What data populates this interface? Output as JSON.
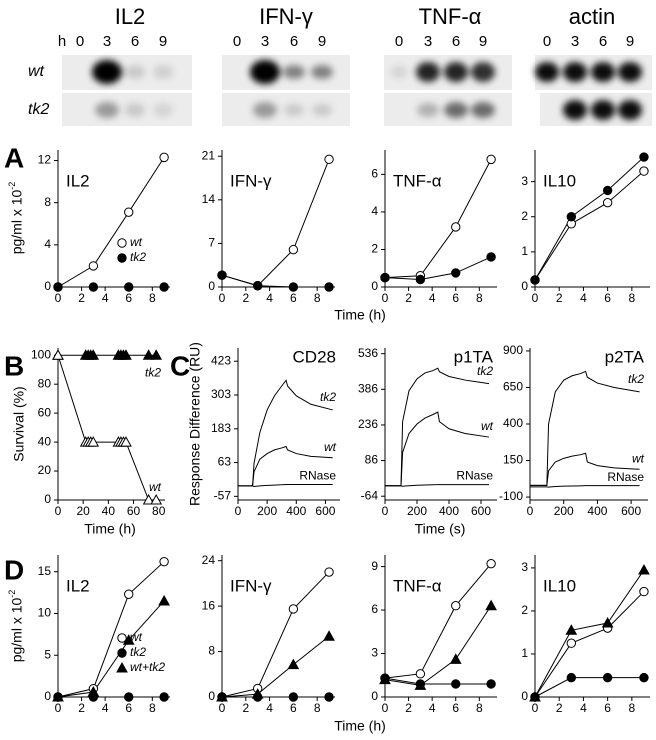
{
  "blot": {
    "targets": [
      "IL2",
      "IFN-γ",
      "TNF-α",
      "actin"
    ],
    "hour_unit": "h",
    "hours": [
      0,
      3,
      6,
      9
    ],
    "rows": [
      "wt",
      "tk2"
    ]
  },
  "chart_data": [
    {
      "type": "line",
      "panel": "A",
      "title": "IL2",
      "x": [
        0,
        3,
        6,
        9
      ],
      "xlim": [
        0,
        9.5
      ],
      "xticks": [
        0,
        2,
        4,
        6,
        8
      ],
      "ylim": [
        0,
        13
      ],
      "yticks": [
        0,
        4,
        8,
        12
      ],
      "ylabel": "pg/ml x 10",
      "ylabel_exponent": "-2",
      "legend": "lower right",
      "series": [
        {
          "name": "wt",
          "color": "#000000",
          "marker": "open-circle",
          "values": [
            0,
            2,
            7.1,
            12.3
          ]
        },
        {
          "name": "tk2",
          "color": "#000000",
          "marker": "filled-circle",
          "values": [
            0,
            0,
            0,
            0
          ]
        }
      ]
    },
    {
      "type": "line",
      "title": "IFN-γ",
      "x": [
        0,
        3,
        6,
        9
      ],
      "xlim": [
        0,
        9.5
      ],
      "xticks": [
        0,
        2,
        4,
        6,
        8
      ],
      "ylim": [
        0,
        22
      ],
      "yticks": [
        0,
        7,
        14,
        21
      ],
      "series": [
        {
          "name": "wt",
          "color": "#000000",
          "marker": "open-circle",
          "values": [
            1.9,
            0.2,
            6,
            20.5
          ]
        },
        {
          "name": "tk2",
          "color": "#000000",
          "marker": "filled-circle",
          "values": [
            1.9,
            0.2,
            0,
            0
          ]
        }
      ]
    },
    {
      "type": "line",
      "title": "TNF-α",
      "x": [
        0,
        3,
        6,
        9
      ],
      "xlim": [
        0,
        9.5
      ],
      "xticks": [
        0,
        2,
        4,
        6,
        8
      ],
      "ylim": [
        0,
        7.3
      ],
      "yticks": [
        0,
        2,
        4,
        6
      ],
      "xlabel": "Time (h)",
      "series": [
        {
          "name": "wt",
          "color": "#000000",
          "marker": "open-circle",
          "values": [
            0.5,
            0.6,
            3.2,
            6.8
          ]
        },
        {
          "name": "tk2",
          "color": "#000000",
          "marker": "filled-circle",
          "values": [
            0.5,
            0.4,
            0.75,
            1.6
          ]
        }
      ]
    },
    {
      "type": "line",
      "title": "IL10",
      "x": [
        0,
        3,
        6,
        9
      ],
      "xlim": [
        0,
        9.5
      ],
      "xticks": [
        0,
        2,
        4,
        6,
        8
      ],
      "ylim": [
        0,
        3.9
      ],
      "yticks": [
        0,
        1,
        2,
        3
      ],
      "series": [
        {
          "name": "wt",
          "color": "#000000",
          "marker": "open-circle",
          "values": [
            0.2,
            1.8,
            2.4,
            3.3
          ]
        },
        {
          "name": "tk2",
          "color": "#000000",
          "marker": "filled-circle",
          "values": [
            0.2,
            2.0,
            2.75,
            3.7
          ]
        }
      ]
    },
    {
      "type": "line",
      "panel": "B",
      "x": [
        0,
        22,
        24,
        26,
        28,
        48,
        50,
        52,
        54,
        72,
        78
      ],
      "xlim": [
        0,
        85
      ],
      "xticks": [
        0,
        20,
        40,
        60,
        80
      ],
      "ylim": [
        0,
        105
      ],
      "yticks": [
        0,
        20,
        40,
        60,
        80,
        100
      ],
      "xlabel": "Time (h)",
      "ylabel": "Survival (%)",
      "series_labels": true,
      "series": [
        {
          "name": "tk2",
          "color": "#000000",
          "marker": "filled-triangle",
          "values": [
            100,
            100,
            100,
            100,
            100,
            100,
            100,
            100,
            100,
            100,
            100
          ]
        },
        {
          "name": "wt",
          "color": "#000000",
          "marker": "open-triangle",
          "values": [
            100,
            40,
            40,
            40,
            40,
            40,
            40,
            40,
            40,
            0,
            0
          ]
        }
      ]
    },
    {
      "type": "line",
      "panel": "C",
      "title": "CD28",
      "x": [
        0,
        100,
        110,
        150,
        200,
        250,
        300,
        330,
        340,
        400,
        500,
        650
      ],
      "xlim": [
        0,
        700
      ],
      "xticks": [
        0,
        200,
        400,
        600
      ],
      "ylim": [
        -70,
        470
      ],
      "yticks": [
        -57,
        63,
        183,
        303,
        423
      ],
      "ylabel": "Response Difference (RU)",
      "series_labels": true,
      "series": [
        {
          "name": "tk2",
          "color": "#000000",
          "marker": "none",
          "values": [
            -20,
            -20,
            60,
            170,
            250,
            300,
            335,
            355,
            335,
            300,
            270,
            250
          ]
        },
        {
          "name": "wt",
          "color": "#000000",
          "marker": "none",
          "values": [
            -20,
            -20,
            30,
            75,
            95,
            108,
            115,
            120,
            108,
            95,
            85,
            80
          ]
        },
        {
          "name": "RNase",
          "color": "#000000",
          "marker": "none",
          "values": [
            -20,
            -20,
            -22,
            -20,
            -18,
            -17,
            -16,
            -15,
            -15,
            -15,
            -15,
            -15
          ]
        }
      ]
    },
    {
      "type": "line",
      "title": "p1TA",
      "x": [
        0,
        100,
        110,
        150,
        200,
        250,
        300,
        330,
        340,
        400,
        500,
        650
      ],
      "xlim": [
        0,
        700
      ],
      "xticks": [
        0,
        200,
        400,
        600
      ],
      "ylim": [
        -80,
        560
      ],
      "yticks": [
        -64,
        86,
        236,
        386,
        536
      ],
      "xlabel": "Time (s)",
      "series_labels": true,
      "series": [
        {
          "name": "tk2",
          "color": "#000000",
          "marker": "none",
          "values": [
            -20,
            -20,
            250,
            380,
            430,
            455,
            465,
            475,
            460,
            440,
            425,
            410
          ]
        },
        {
          "name": "wt",
          "color": "#000000",
          "marker": "none",
          "values": [
            -20,
            -20,
            120,
            200,
            240,
            265,
            280,
            290,
            250,
            220,
            200,
            185
          ]
        },
        {
          "name": "RNase",
          "color": "#000000",
          "marker": "none",
          "values": [
            -20,
            -20,
            -22,
            -20,
            -18,
            -17,
            -16,
            -15,
            -15,
            -15,
            -15,
            -15
          ]
        }
      ]
    },
    {
      "type": "line",
      "title": "p2TA",
      "x": [
        0,
        100,
        110,
        150,
        200,
        250,
        300,
        330,
        340,
        400,
        500,
        650
      ],
      "xlim": [
        0,
        700
      ],
      "xticks": [
        0,
        200,
        400,
        600
      ],
      "ylim": [
        -120,
        920
      ],
      "yticks": [
        -100,
        150,
        400,
        650,
        900
      ],
      "series_labels": true,
      "series": [
        {
          "name": "tk2",
          "color": "#000000",
          "marker": "none",
          "values": [
            -20,
            -20,
            400,
            620,
            700,
            730,
            745,
            760,
            720,
            680,
            650,
            620
          ]
        },
        {
          "name": "wt",
          "color": "#000000",
          "marker": "none",
          "values": [
            -20,
            -20,
            80,
            140,
            165,
            180,
            190,
            200,
            140,
            115,
            100,
            90
          ]
        },
        {
          "name": "RNase",
          "color": "#000000",
          "marker": "none",
          "values": [
            -30,
            -30,
            -32,
            -28,
            -25,
            -24,
            -23,
            -22,
            -22,
            -22,
            -22,
            -22
          ]
        }
      ]
    },
    {
      "type": "line",
      "panel": "D",
      "title": "IL2",
      "x": [
        0,
        3,
        6,
        9
      ],
      "xlim": [
        0,
        9.5
      ],
      "xticks": [
        0,
        2,
        4,
        6,
        8
      ],
      "ylim": [
        0,
        17
      ],
      "yticks": [
        0,
        5,
        10,
        15
      ],
      "ylabel": "pg/ml x 10",
      "ylabel_exponent": "-2",
      "legend": "lower right",
      "series": [
        {
          "name": "wt",
          "color": "#000000",
          "marker": "open-circle",
          "values": [
            0,
            1.0,
            12.3,
            16.2
          ]
        },
        {
          "name": "tk2",
          "color": "#000000",
          "marker": "filled-circle",
          "values": [
            0,
            0,
            0,
            0
          ]
        },
        {
          "name": "wt+tk2",
          "color": "#000000",
          "marker": "filled-triangle",
          "values": [
            0,
            0.6,
            6.8,
            11.5
          ]
        }
      ]
    },
    {
      "type": "line",
      "title": "IFN-γ",
      "x": [
        0,
        3,
        6,
        9
      ],
      "xlim": [
        0,
        9.5
      ],
      "xticks": [
        0,
        2,
        4,
        6,
        8
      ],
      "ylim": [
        0,
        25
      ],
      "yticks": [
        0,
        8,
        16,
        24
      ],
      "series": [
        {
          "name": "wt",
          "color": "#000000",
          "marker": "open-circle",
          "values": [
            0,
            1.5,
            15.5,
            22
          ]
        },
        {
          "name": "tk2",
          "color": "#000000",
          "marker": "filled-circle",
          "values": [
            0,
            0,
            0,
            0
          ]
        },
        {
          "name": "wt+tk2",
          "color": "#000000",
          "marker": "filled-triangle",
          "values": [
            0,
            0.5,
            5.7,
            10.7
          ]
        }
      ]
    },
    {
      "type": "line",
      "title": "TNF-α",
      "x": [
        0,
        3,
        6,
        9
      ],
      "xlim": [
        0,
        9.5
      ],
      "xticks": [
        0,
        2,
        4,
        6,
        8
      ],
      "ylim": [
        0,
        9.8
      ],
      "yticks": [
        0,
        3,
        6,
        9
      ],
      "xlabel": "Time (h)",
      "series": [
        {
          "name": "wt",
          "color": "#000000",
          "marker": "open-circle",
          "values": [
            1.3,
            1.6,
            6.3,
            9.2
          ]
        },
        {
          "name": "tk2",
          "color": "#000000",
          "marker": "filled-circle",
          "values": [
            1.3,
            0.9,
            0.9,
            0.9
          ]
        },
        {
          "name": "wt+tk2",
          "color": "#000000",
          "marker": "filled-triangle",
          "values": [
            1.2,
            0.8,
            2.6,
            6.3
          ]
        }
      ]
    },
    {
      "type": "line",
      "title": "IL10",
      "x": [
        0,
        3,
        6,
        9
      ],
      "xlim": [
        0,
        9.5
      ],
      "xticks": [
        0,
        2,
        4,
        6,
        8
      ],
      "ylim": [
        0,
        3.3
      ],
      "yticks": [
        0,
        1,
        2,
        3
      ],
      "series": [
        {
          "name": "wt",
          "color": "#000000",
          "marker": "open-circle",
          "values": [
            0,
            1.25,
            1.6,
            2.45
          ]
        },
        {
          "name": "tk2",
          "color": "#000000",
          "marker": "filled-circle",
          "values": [
            0,
            0.45,
            0.45,
            0.45
          ]
        },
        {
          "name": "wt+tk2",
          "color": "#000000",
          "marker": "filled-triangle",
          "values": [
            0,
            1.55,
            1.72,
            2.95
          ]
        }
      ]
    }
  ]
}
